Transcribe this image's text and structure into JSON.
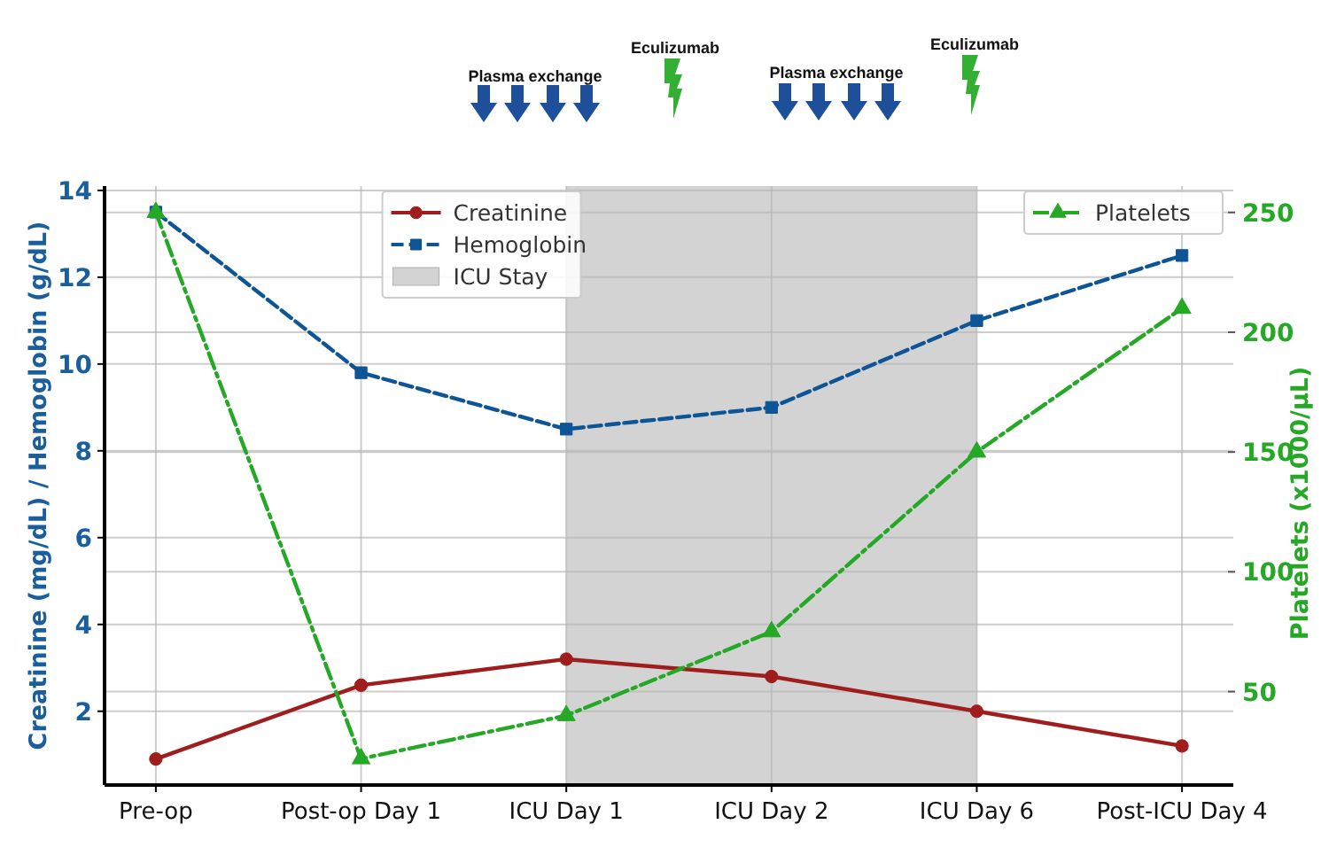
{
  "chart_data": {
    "type": "line",
    "categories": [
      "Pre-op",
      "Post-op Day 1",
      "ICU Day 1",
      "ICU Day 2",
      "ICU Day 6",
      "Post-ICU Day 4"
    ],
    "series": [
      {
        "name": "Creatinine",
        "color": "#a01d1d",
        "values": [
          0.9,
          2.6,
          3.2,
          2.8,
          2.0,
          1.2
        ],
        "marker": "circle",
        "line_style": "solid"
      },
      {
        "name": "Hemoglobin",
        "color": "#0d5596",
        "values": [
          13.5,
          9.8,
          8.5,
          9.0,
          11.0,
          12.5
        ],
        "marker": "square",
        "line_style": "dashed"
      },
      {
        "name": "Platelets",
        "color": "#25a825",
        "values": [
          250,
          22,
          40,
          75,
          150,
          210
        ],
        "axis": "y2",
        "marker": "triangle",
        "line_style": "dashdot"
      }
    ],
    "ylabel": "Creatinine (mg/dL) / Hemoglobin (g/dL)",
    "y2label": "Platelets (x1000/µL)",
    "ylim": [
      0.3,
      14.1
    ],
    "yticks": [
      2,
      4,
      6,
      8,
      10,
      12,
      14
    ],
    "y2lim": [
      11,
      261
    ],
    "y2ticks": [
      50,
      100,
      150,
      200,
      250
    ],
    "bands": [
      {
        "axis": "x",
        "from": "ICU Day 1",
        "to": "ICU Day 6",
        "label": "ICU Stay",
        "color": "#d3d3d3"
      }
    ],
    "annotations": [
      "Plasma exchange",
      "Eculizumab",
      "Plasma exchange",
      "Eculizumab"
    ],
    "grid": true,
    "legend": "top"
  }
}
